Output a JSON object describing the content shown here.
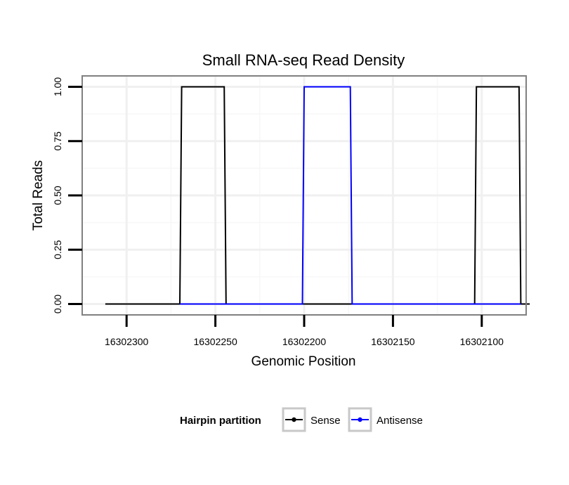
{
  "chart_data": {
    "type": "line",
    "title": "Small RNA-seq Read Density",
    "xlabel": "Genomic Position",
    "ylabel": "Total Reads",
    "x_reversed": true,
    "xlim": [
      16302325,
      16302075
    ],
    "ylim": [
      -0.05,
      1.05
    ],
    "x_ticks": [
      16302300,
      16302250,
      16302200,
      16302150,
      16302100
    ],
    "x_tick_labels": [
      "16302300",
      "16302250",
      "16302200",
      "16302150",
      "16302100"
    ],
    "y_ticks": [
      0,
      0.25,
      0.5,
      0.75,
      1
    ],
    "y_tick_labels": [
      "0.00",
      "0.25",
      "0.50",
      "0.75",
      "1.00"
    ],
    "grid": true,
    "legend": {
      "title": "Hairpin partition",
      "position": "bottom",
      "entries": [
        {
          "name": "Sense",
          "color": "#000000"
        },
        {
          "name": "Antisense",
          "color": "#0000ff"
        }
      ]
    },
    "series": [
      {
        "name": "Sense",
        "color": "#000000",
        "x": [
          16302312,
          16302270,
          16302269,
          16302245,
          16302244,
          16302166,
          16302165,
          16302141,
          16302140,
          16302104,
          16302103,
          16302079,
          16302078,
          16302073
        ],
        "y": [
          0,
          0,
          1,
          1,
          0,
          0,
          0,
          0,
          0,
          0,
          1,
          1,
          0,
          0
        ]
      },
      {
        "name": "Antisense",
        "color": "#0000ff",
        "x": [
          16302270,
          16302244,
          16302201,
          16302200,
          16302174,
          16302173,
          16302104,
          16302078
        ],
        "y": [
          0,
          0,
          0,
          1,
          1,
          0,
          0,
          0
        ]
      }
    ]
  }
}
